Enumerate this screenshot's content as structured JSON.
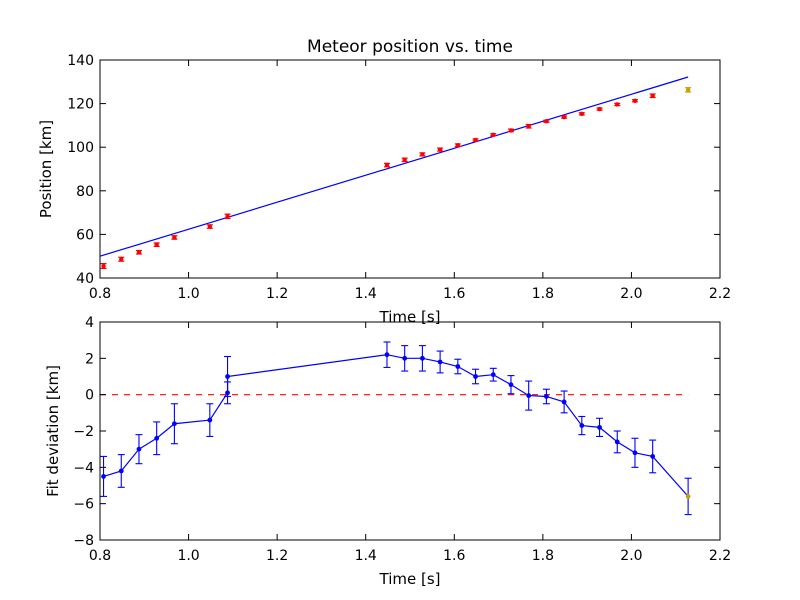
{
  "colors": {
    "fit_line": "#0000ff",
    "data_point": "#ff0000",
    "outlier_point": "#c8a000",
    "zero_line": "#ff0000",
    "deviation_series": "#0000ff"
  },
  "chart_data": [
    {
      "type": "scatter",
      "title": "Meteor position vs. time",
      "xlabel": "Time [s]",
      "ylabel": "Position [km]",
      "xlim": [
        0.8,
        2.2
      ],
      "ylim": [
        40,
        140
      ],
      "xticks": [
        "0.8",
        "1.0",
        "1.2",
        "1.4",
        "1.6",
        "1.8",
        "2.0",
        "2.2"
      ],
      "yticks": [
        "40",
        "60",
        "80",
        "100",
        "120",
        "140"
      ],
      "grid": false,
      "points": [
        {
          "x": 0.808,
          "y": 45.5,
          "err": 1.1
        },
        {
          "x": 0.848,
          "y": 48.6,
          "err": 0.9
        },
        {
          "x": 0.888,
          "y": 51.8,
          "err": 0.8
        },
        {
          "x": 0.928,
          "y": 55.3,
          "err": 0.8
        },
        {
          "x": 0.968,
          "y": 58.6,
          "err": 0.8
        },
        {
          "x": 1.048,
          "y": 63.6,
          "err": 0.8
        },
        {
          "x": 1.088,
          "y": 68.3,
          "err": 1.0
        },
        {
          "x": 1.448,
          "y": 91.8,
          "err": 0.8
        },
        {
          "x": 1.488,
          "y": 94.2,
          "err": 0.8
        },
        {
          "x": 1.528,
          "y": 96.7,
          "err": 0.7
        },
        {
          "x": 1.568,
          "y": 98.9,
          "err": 0.7
        },
        {
          "x": 1.608,
          "y": 100.9,
          "err": 0.6
        },
        {
          "x": 1.648,
          "y": 103.3,
          "err": 0.5
        },
        {
          "x": 1.688,
          "y": 105.7,
          "err": 0.5
        },
        {
          "x": 1.728,
          "y": 107.7,
          "err": 0.6
        },
        {
          "x": 1.768,
          "y": 109.6,
          "err": 0.8
        },
        {
          "x": 1.808,
          "y": 111.9,
          "err": 0.5
        },
        {
          "x": 1.848,
          "y": 113.8,
          "err": 0.5
        },
        {
          "x": 1.888,
          "y": 115.3,
          "err": 0.5
        },
        {
          "x": 1.928,
          "y": 117.5,
          "err": 0.5
        },
        {
          "x": 1.968,
          "y": 119.6,
          "err": 0.5
        },
        {
          "x": 2.008,
          "y": 121.3,
          "err": 0.5
        },
        {
          "x": 2.048,
          "y": 123.6,
          "err": 0.8
        },
        {
          "x": 2.128,
          "y": 126.3,
          "err": 1.0,
          "outlier": true
        }
      ],
      "fit_line": {
        "x": [
          0.8,
          2.128
        ],
        "y": [
          50.0,
          132.2
        ]
      }
    },
    {
      "type": "line",
      "xlabel": "Time [s]",
      "ylabel": "Fit deviation [km]",
      "xlim": [
        0.8,
        2.2
      ],
      "ylim": [
        -8,
        4
      ],
      "xticks": [
        "0.8",
        "1.0",
        "1.2",
        "1.4",
        "1.6",
        "1.8",
        "2.0",
        "2.2"
      ],
      "yticks": [
        "−8",
        "−6",
        "−4",
        "−2",
        "0",
        "2",
        "4"
      ],
      "grid": false,
      "zero_line": {
        "y": 0,
        "x": [
          0.8,
          2.128
        ],
        "style": "dashed"
      },
      "points": [
        {
          "x": 0.808,
          "y": -4.5,
          "err": 1.1
        },
        {
          "x": 0.848,
          "y": -4.2,
          "err": 0.9
        },
        {
          "x": 0.888,
          "y": -3.0,
          "err": 0.8
        },
        {
          "x": 0.928,
          "y": -2.4,
          "err": 0.9
        },
        {
          "x": 0.968,
          "y": -1.6,
          "err": 1.1
        },
        {
          "x": 1.048,
          "y": -1.4,
          "err": 0.9
        },
        {
          "x": 1.088,
          "y": 0.1,
          "err": 0.6
        },
        {
          "x": 1.088,
          "y": 1.0,
          "err": 1.1
        },
        {
          "x": 1.448,
          "y": 2.2,
          "err": 0.7
        },
        {
          "x": 1.488,
          "y": 2.0,
          "err": 0.7
        },
        {
          "x": 1.528,
          "y": 2.0,
          "err": 0.7
        },
        {
          "x": 1.568,
          "y": 1.8,
          "err": 0.6
        },
        {
          "x": 1.608,
          "y": 1.55,
          "err": 0.4
        },
        {
          "x": 1.648,
          "y": 1.0,
          "err": 0.4
        },
        {
          "x": 1.688,
          "y": 1.1,
          "err": 0.35
        },
        {
          "x": 1.728,
          "y": 0.55,
          "err": 0.5
        },
        {
          "x": 1.768,
          "y": -0.05,
          "err": 0.8
        },
        {
          "x": 1.808,
          "y": -0.1,
          "err": 0.4
        },
        {
          "x": 1.848,
          "y": -0.4,
          "err": 0.6
        },
        {
          "x": 1.888,
          "y": -1.7,
          "err": 0.5
        },
        {
          "x": 1.928,
          "y": -1.8,
          "err": 0.5
        },
        {
          "x": 1.968,
          "y": -2.6,
          "err": 0.6
        },
        {
          "x": 2.008,
          "y": -3.2,
          "err": 0.8
        },
        {
          "x": 2.048,
          "y": -3.4,
          "err": 0.9
        },
        {
          "x": 2.128,
          "y": -5.6,
          "err": 1.0,
          "outlier": true
        }
      ]
    }
  ]
}
